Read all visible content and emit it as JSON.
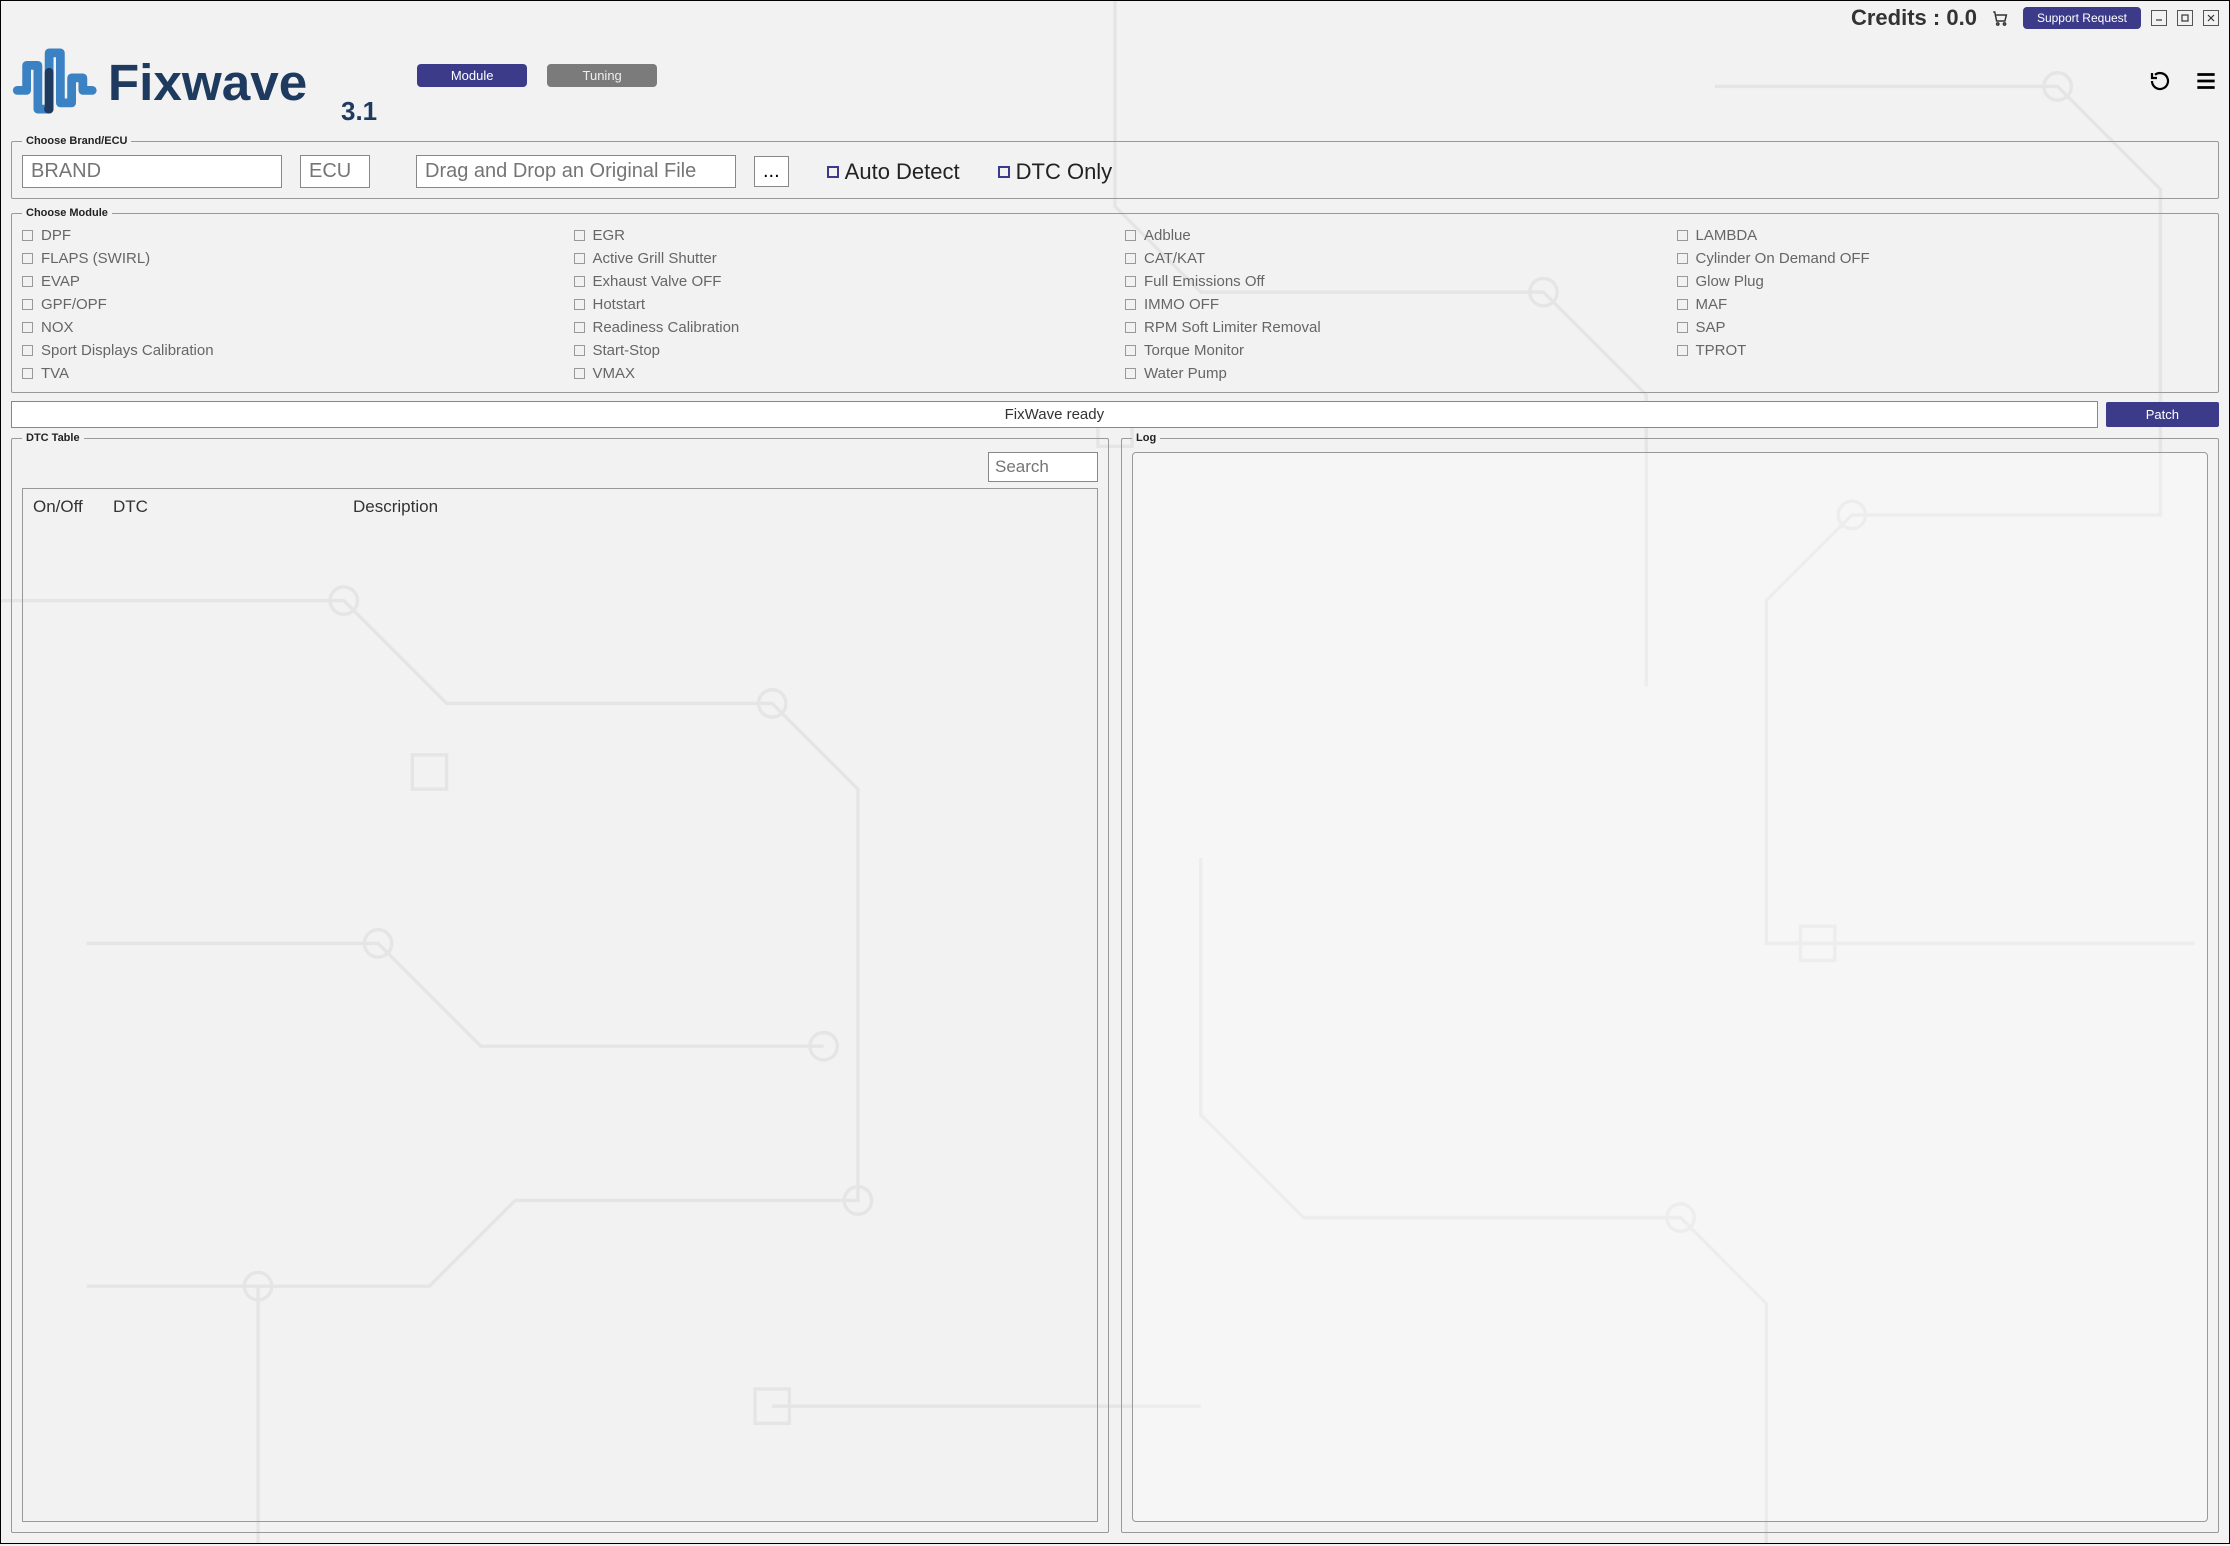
{
  "topbar": {
    "credits_label": "Credits : ",
    "credits_value": "0.0",
    "support_label": "Support Request"
  },
  "app": {
    "name": "Fixwave",
    "version": "3.1"
  },
  "tabs": {
    "module": "Module",
    "tuning": "Tuning"
  },
  "brand_panel": {
    "legend": "Choose Brand/ECU",
    "brand_placeholder": "BRAND",
    "ecu_placeholder": "ECU",
    "file_placeholder": "Drag and Drop an Original File",
    "browse": "...",
    "auto_detect": "Auto Detect",
    "dtc_only": "DTC Only"
  },
  "module_panel": {
    "legend": "Choose Module",
    "items": [
      "DPF",
      "EGR",
      "Adblue",
      "LAMBDA",
      "FLAPS (SWIRL)",
      "Active Grill Shutter",
      "CAT/KAT",
      "Cylinder On Demand OFF",
      "EVAP",
      "Exhaust Valve OFF",
      "Full Emissions Off",
      "Glow Plug",
      "GPF/OPF",
      "Hotstart",
      "IMMO OFF",
      "MAF",
      "NOX",
      "Readiness Calibration",
      "RPM Soft Limiter Removal",
      "SAP",
      "Sport Displays Calibration",
      "Start-Stop",
      "Torque Monitor",
      "TPROT",
      "TVA",
      "VMAX",
      "Water Pump"
    ]
  },
  "status": {
    "text": "FixWave ready",
    "patch": "Patch"
  },
  "dtc_panel": {
    "legend": "DTC Table",
    "search_placeholder": "Search",
    "col_onoff": "On/Off",
    "col_dtc": "DTC",
    "col_desc": "Description"
  },
  "log_panel": {
    "legend": "Log"
  },
  "colors": {
    "accent": "#3b3b8a",
    "inactive": "#7b7b7b",
    "logo_blue": "#3b82c4",
    "logo_dark": "#1f3a5f"
  }
}
